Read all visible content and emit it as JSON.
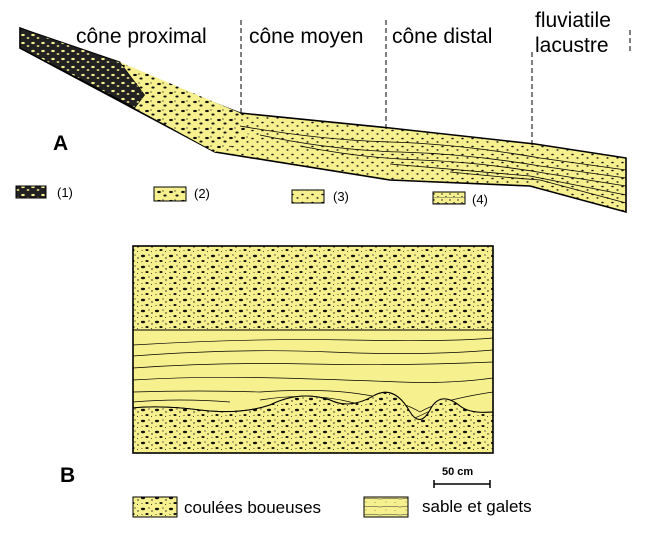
{
  "section_a": {
    "panel_letter": "A",
    "zones": [
      {
        "id": "proximal",
        "label": "cône proximal"
      },
      {
        "id": "moyen",
        "label": "cône moyen"
      },
      {
        "id": "distal",
        "label": "cône distal"
      },
      {
        "id": "lacustre",
        "label_line1": "fluviatile",
        "label_line2": "lacustre"
      }
    ],
    "legend": [
      {
        "label": "(1)",
        "pattern": "dark-conglomerate"
      },
      {
        "label": "(2)",
        "pattern": "coarse-gravel"
      },
      {
        "label": "(3)",
        "pattern": "medium-gravel"
      },
      {
        "label": "(4)",
        "pattern": "fine-gravel-lamination"
      }
    ]
  },
  "section_b": {
    "panel_letter": "B",
    "scale_label": "50 cm",
    "legend": [
      {
        "label": "coulées boueuses",
        "pattern": "mudflow"
      },
      {
        "label": "sable et galets",
        "pattern": "sand-laminated"
      }
    ]
  },
  "colors": {
    "sediment_yellow": "#f6f08f",
    "outline": "#000000",
    "background": "#ffffff"
  }
}
